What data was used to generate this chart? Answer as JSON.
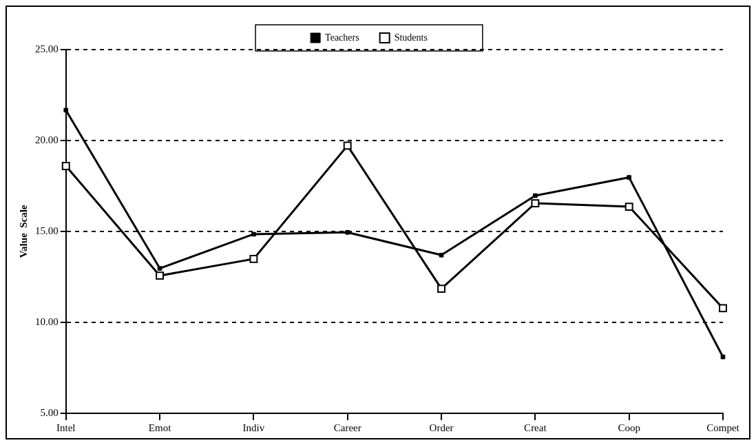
{
  "chart_data": {
    "type": "line",
    "ylabel": "Value  Scale",
    "categories": [
      "Intel",
      "Emot",
      "Indiv",
      "Career",
      "Order",
      "Creat",
      "Coop",
      "Compet"
    ],
    "series": [
      {
        "name": "Teachers",
        "color": "#000000",
        "values": [
          21.67,
          12.97,
          14.85,
          14.95,
          13.7,
          16.97,
          17.97,
          8.1
        ]
      },
      {
        "name": "Students",
        "color": "#000000",
        "values": [
          18.6,
          12.57,
          13.49,
          19.72,
          11.85,
          16.55,
          16.36,
          10.78
        ]
      }
    ],
    "ylim": [
      5,
      25
    ],
    "yticks": [
      {
        "value": 5,
        "label": "5.00"
      },
      {
        "value": 10,
        "label": "10.00"
      },
      {
        "value": 15,
        "label": "15.00"
      },
      {
        "value": 20,
        "label": "20.00"
      },
      {
        "value": 25,
        "label": "25.00"
      }
    ],
    "grid": "y",
    "legend": "top",
    "marker": "square",
    "line_style": "solid"
  }
}
